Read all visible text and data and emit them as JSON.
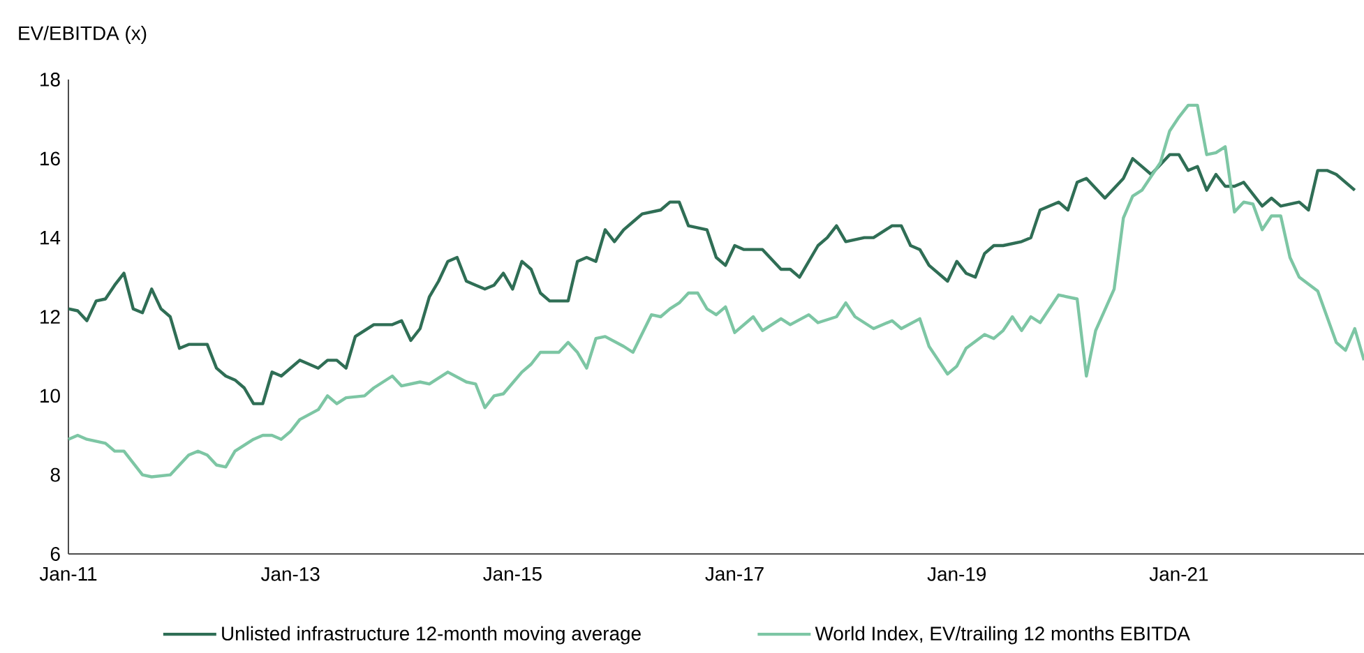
{
  "chart_data": {
    "type": "line",
    "ylabel": "EV/EBITDA (x)",
    "legend": "bottom",
    "xlim": [
      "2011-01",
      "2022-09"
    ],
    "xticks": [
      {
        "value": "2011-01",
        "label": "Jan-11"
      },
      {
        "value": "2013-01",
        "label": "Jan-13"
      },
      {
        "value": "2015-01",
        "label": "Jan-15"
      },
      {
        "value": "2017-01",
        "label": "Jan-17"
      },
      {
        "value": "2019-01",
        "label": "Jan-19"
      },
      {
        "value": "2021-01",
        "label": "Jan-21"
      }
    ],
    "ylim": [
      6,
      18
    ],
    "yticks": [
      6,
      8,
      10,
      12,
      14,
      16,
      18
    ],
    "series": [
      {
        "name": "Unlisted infrastructure 12-month moving average",
        "color": "#2f6e55",
        "x": [
          "2011-01",
          "2011-02",
          "2011-03",
          "2011-04",
          "2011-05",
          "2011-06",
          "2011-07",
          "2011-08",
          "2011-09",
          "2011-10",
          "2011-11",
          "2011-12",
          "2012-01",
          "2012-02",
          "2012-04",
          "2012-05",
          "2012-06",
          "2012-07",
          "2012-08",
          "2012-09",
          "2012-10",
          "2012-11",
          "2012-12",
          "2013-01",
          "2013-02",
          "2013-04",
          "2013-05",
          "2013-06",
          "2013-07",
          "2013-08",
          "2013-10",
          "2013-12",
          "2014-01",
          "2014-02",
          "2014-03",
          "2014-04",
          "2014-05",
          "2014-06",
          "2014-07",
          "2014-08",
          "2014-09",
          "2014-10",
          "2014-11",
          "2014-12",
          "2015-01",
          "2015-02",
          "2015-03",
          "2015-04",
          "2015-05",
          "2015-07",
          "2015-08",
          "2015-09",
          "2015-10",
          "2015-11",
          "2015-12",
          "2016-01",
          "2016-02",
          "2016-03",
          "2016-05",
          "2016-06",
          "2016-07",
          "2016-08",
          "2016-10",
          "2016-11",
          "2016-12",
          "2017-01",
          "2017-02",
          "2017-04",
          "2017-06",
          "2017-07",
          "2017-08",
          "2017-10",
          "2017-11",
          "2017-12",
          "2018-01",
          "2018-03",
          "2018-04",
          "2018-06",
          "2018-07",
          "2018-08",
          "2018-09",
          "2018-10",
          "2018-12",
          "2019-01",
          "2019-02",
          "2019-03",
          "2019-04",
          "2019-05",
          "2019-06",
          "2019-08",
          "2019-09",
          "2019-10",
          "2019-12",
          "2020-01",
          "2020-02",
          "2020-03",
          "2020-05",
          "2020-07",
          "2020-08",
          "2020-09",
          "2020-10",
          "2020-12",
          "2021-01",
          "2021-02",
          "2021-03",
          "2021-04",
          "2021-05",
          "2021-06",
          "2021-07",
          "2021-08",
          "2021-09",
          "2021-10",
          "2021-11",
          "2021-12",
          "2022-02",
          "2022-03",
          "2022-04",
          "2022-05",
          "2022-06",
          "2022-07",
          "2022-08"
        ],
        "values": [
          12.2,
          12.15,
          11.9,
          12.4,
          12.45,
          12.8,
          13.1,
          12.2,
          12.1,
          12.7,
          12.2,
          12.0,
          11.2,
          11.3,
          11.3,
          10.7,
          10.5,
          10.4,
          10.2,
          9.8,
          9.8,
          10.6,
          10.5,
          10.7,
          10.9,
          10.7,
          10.9,
          10.9,
          10.7,
          11.5,
          11.8,
          11.8,
          11.9,
          11.4,
          11.7,
          12.5,
          12.9,
          13.4,
          13.5,
          12.9,
          12.8,
          12.7,
          12.8,
          13.1,
          12.7,
          13.4,
          13.2,
          12.6,
          12.4,
          12.4,
          13.4,
          13.5,
          13.4,
          14.2,
          13.9,
          14.2,
          14.4,
          14.6,
          14.7,
          14.9,
          14.9,
          14.3,
          14.2,
          13.5,
          13.3,
          13.8,
          13.7,
          13.7,
          13.2,
          13.2,
          13.0,
          13.8,
          14.0,
          14.3,
          13.9,
          14.0,
          14.0,
          14.3,
          14.3,
          13.8,
          13.7,
          13.3,
          12.9,
          13.4,
          13.1,
          13.0,
          13.6,
          13.8,
          13.8,
          13.9,
          14.0,
          14.7,
          14.9,
          14.7,
          15.4,
          15.5,
          15.0,
          15.5,
          16.0,
          15.8,
          15.6,
          16.1,
          16.1,
          15.7,
          15.8,
          15.2,
          15.6,
          15.3,
          15.3,
          15.4,
          15.1,
          14.8,
          15.0,
          14.8,
          14.9,
          14.7,
          15.7,
          15.7,
          15.6,
          15.4,
          15.2
        ]
      },
      {
        "name": "World Index, EV/trailing 12 months EBITDA",
        "color": "#7dc6a4",
        "x": [
          "2011-01",
          "2011-02",
          "2011-03",
          "2011-05",
          "2011-06",
          "2011-07",
          "2011-08",
          "2011-09",
          "2011-10",
          "2011-12",
          "2012-02",
          "2012-03",
          "2012-04",
          "2012-05",
          "2012-06",
          "2012-07",
          "2012-09",
          "2012-10",
          "2012-11",
          "2012-12",
          "2013-01",
          "2013-02",
          "2013-04",
          "2013-05",
          "2013-06",
          "2013-07",
          "2013-09",
          "2013-10",
          "2013-12",
          "2014-01",
          "2014-03",
          "2014-04",
          "2014-06",
          "2014-08",
          "2014-09",
          "2014-10",
          "2014-11",
          "2014-12",
          "2015-02",
          "2015-03",
          "2015-04",
          "2015-06",
          "2015-07",
          "2015-08",
          "2015-09",
          "2015-10",
          "2015-11",
          "2016-01",
          "2016-02",
          "2016-04",
          "2016-05",
          "2016-06",
          "2016-07",
          "2016-08",
          "2016-09",
          "2016-10",
          "2016-11",
          "2016-12",
          "2017-01",
          "2017-03",
          "2017-04",
          "2017-06",
          "2017-07",
          "2017-09",
          "2017-10",
          "2017-12",
          "2018-01",
          "2018-02",
          "2018-04",
          "2018-06",
          "2018-07",
          "2018-09",
          "2018-10",
          "2018-12",
          "2019-01",
          "2019-02",
          "2019-04",
          "2019-05",
          "2019-06",
          "2019-07",
          "2019-08",
          "2019-09",
          "2019-10",
          "2019-12",
          "2020-02",
          "2020-03",
          "2020-04",
          "2020-06",
          "2020-07",
          "2020-08",
          "2020-09",
          "2020-11",
          "2020-12",
          "2021-01",
          "2021-02",
          "2021-03",
          "2021-04",
          "2021-05",
          "2021-06",
          "2021-07",
          "2021-08",
          "2021-09",
          "2021-10",
          "2021-11",
          "2021-12",
          "2022-01",
          "2022-02",
          "2022-04",
          "2022-06",
          "2022-07",
          "2022-08",
          "2022-09"
        ],
        "values": [
          8.9,
          9.0,
          8.9,
          8.8,
          8.6,
          8.6,
          8.3,
          8.0,
          7.95,
          8.0,
          8.5,
          8.6,
          8.5,
          8.25,
          8.2,
          8.6,
          8.9,
          9.0,
          9.0,
          8.9,
          9.1,
          9.4,
          9.65,
          10.0,
          9.8,
          9.95,
          10.0,
          10.2,
          10.5,
          10.25,
          10.35,
          10.3,
          10.6,
          10.35,
          10.3,
          9.7,
          10.0,
          10.05,
          10.6,
          10.8,
          11.1,
          11.1,
          11.35,
          11.1,
          10.7,
          11.45,
          11.5,
          11.25,
          11.1,
          12.05,
          12.0,
          12.2,
          12.35,
          12.6,
          12.6,
          12.2,
          12.05,
          12.25,
          11.6,
          12.0,
          11.65,
          11.95,
          11.8,
          12.05,
          11.85,
          12.0,
          12.35,
          12.0,
          11.7,
          11.9,
          11.7,
          11.95,
          11.25,
          10.55,
          10.75,
          11.2,
          11.55,
          11.45,
          11.65,
          12.0,
          11.65,
          12.0,
          11.85,
          12.55,
          12.45,
          10.5,
          11.65,
          12.7,
          14.5,
          15.05,
          15.2,
          15.9,
          16.7,
          17.05,
          17.35,
          17.35,
          16.1,
          16.15,
          16.3,
          14.65,
          14.9,
          14.85,
          14.2,
          14.55,
          14.55,
          13.5,
          13.0,
          12.65,
          11.35,
          11.15,
          11.7,
          10.9
        ]
      }
    ]
  }
}
